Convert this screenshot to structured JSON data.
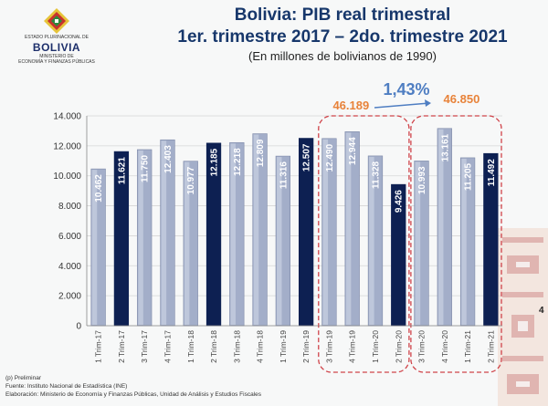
{
  "logo": {
    "name": "BOLIVIA",
    "top_text": "ESTADO PLURINACIONAL DE",
    "ministry_line1": "MINISTERIO DE",
    "ministry_line2": "ECONOMÍA Y FINANZAS PÚBLICAS"
  },
  "header": {
    "title_line1": "Bolivia: PIB real trimestral",
    "title_line2": "1er. trimestre 2017 – 2do. trimestre 2021",
    "subtitle": "(En millones de bolivianos de 1990)"
  },
  "annotations": {
    "growth": "1,43%",
    "sum_2020": "46.189",
    "sum_2021": "46.850"
  },
  "footer": {
    "note": "(p) Preliminar",
    "source": "Fuente: Instituto Nacional de Estadística (INE)",
    "elaboration": "Elaboración: Ministerio de Economía  y Finanzas Públicas, Unidad de Análisis y Estudios Fiscales"
  },
  "page_number": "4",
  "colors": {
    "dark_bar": "#0d2052",
    "light_bar": "#a3aec9",
    "highlight_box": "#d0444a",
    "growth_text": "#4f7ec2",
    "sum_text": "#e8833a",
    "title": "#17376b"
  },
  "chart_data": {
    "type": "bar",
    "categories": [
      "1 Trim-17",
      "2 Trim-17",
      "3 Trim-17",
      "4 Trim-17",
      "1 Trim-18",
      "2 Trim-18",
      "3 Trim-18",
      "4 Trim-18",
      "1 Trim-19",
      "2 Trim-19",
      "3 Trim-19",
      "4 Trim-19",
      "1 Trim-20",
      "2 Trim-20",
      "3 Trim-20",
      "4 Trim-20",
      "1 Trim-21",
      "2 Trim-21"
    ],
    "values": [
      10462,
      11621,
      11750,
      12403,
      10977,
      12185,
      12218,
      12809,
      11316,
      12507,
      12490,
      12944,
      11328,
      9426,
      10993,
      13161,
      11205,
      11492
    ],
    "value_labels": [
      "10.462",
      "11.621",
      "11.750",
      "12.403",
      "10.977",
      "12.185",
      "12.218",
      "12.809",
      "11.316",
      "12.507",
      "12.490",
      "12.944",
      "11.328",
      "9.426",
      "10.993",
      "13.161",
      "11.205",
      "11.492"
    ],
    "highlight": [
      false,
      true,
      false,
      false,
      false,
      true,
      false,
      false,
      false,
      true,
      false,
      false,
      false,
      true,
      false,
      false,
      false,
      true
    ],
    "yticks": [
      0,
      2000,
      4000,
      6000,
      8000,
      10000,
      12000,
      14000
    ],
    "ytick_labels": [
      "0",
      "2.000",
      "4.000",
      "6.000",
      "8.000",
      "10.000",
      "12.000",
      "14.000"
    ],
    "ylim": [
      0,
      14000
    ],
    "grid": true,
    "groups": [
      {
        "first_index": 10,
        "last_index": 13,
        "label": "46.189"
      },
      {
        "first_index": 14,
        "last_index": 17,
        "label": "46.850"
      }
    ]
  }
}
